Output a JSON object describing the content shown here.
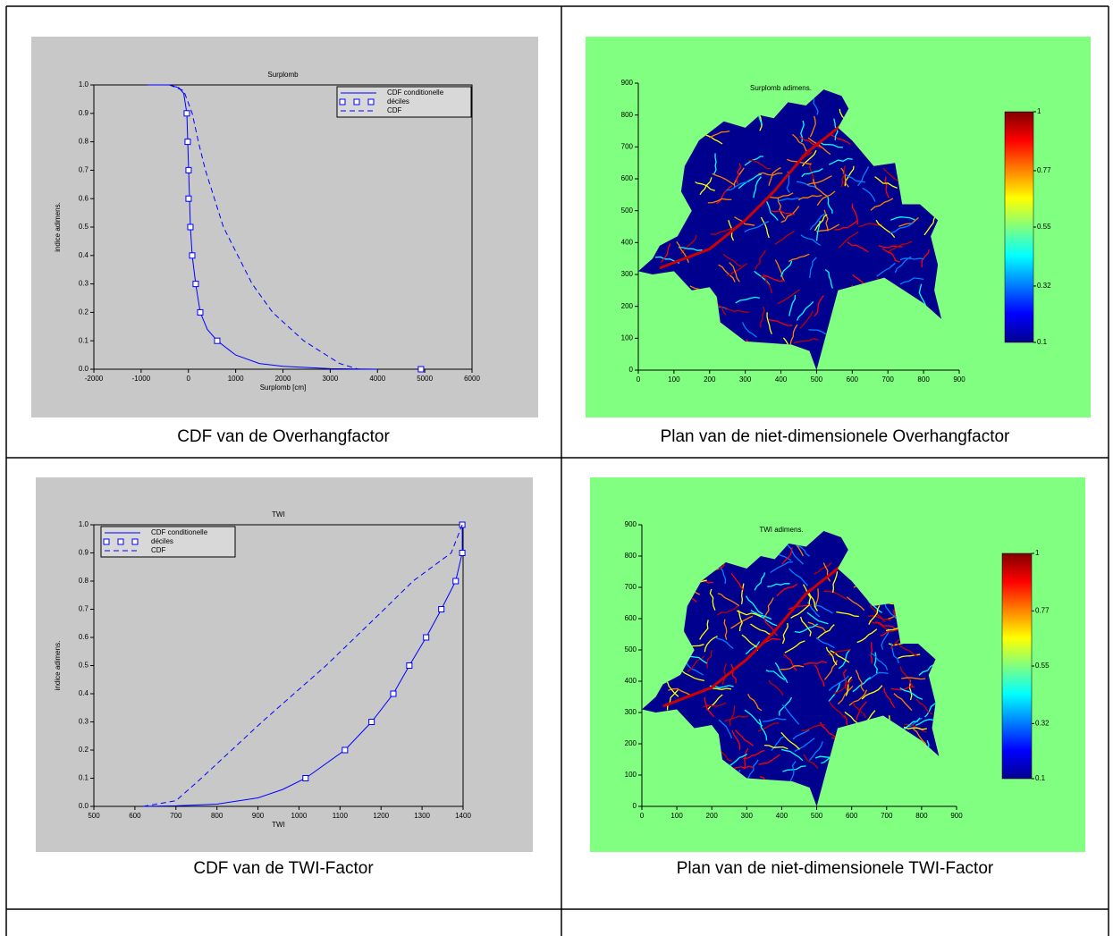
{
  "captions": [
    "CDF van de Overhangfactor",
    "Plan van de  niet-dimensionele Overhangfactor",
    "CDF van de TWI-Factor",
    "Plan van de niet-dimensionele TWI-Factor"
  ],
  "chart_data": [
    {
      "type": "line",
      "title": "Surplomb",
      "xlabel": "Surplomb [cm]",
      "ylabel": "indice adimens.",
      "xlim": [
        -2000,
        6000
      ],
      "ylim": [
        0,
        1
      ],
      "xticks": [
        -2000,
        -1000,
        0,
        1000,
        2000,
        3000,
        4000,
        5000,
        6000
      ],
      "yticks": [
        {
          "value": 0,
          "label": "0.0"
        },
        0.1,
        0.2,
        0.3,
        0.4,
        0.5,
        0.6,
        0.7,
        0.8,
        0.9,
        {
          "value": 1,
          "label": "1.0"
        }
      ],
      "legend": "upper right",
      "series": [
        {
          "name": "CDF conditionelle",
          "color": "#0000ff",
          "style": "solid",
          "x": [
            -870,
            -400,
            -200,
            -100,
            -34,
            -15,
            4,
            42,
            80,
            155,
            250,
            400,
            609,
            1000,
            1500,
            2000,
            3000,
            4000
          ],
          "values": [
            1.0,
            1.0,
            0.99,
            0.97,
            0.9,
            0.8,
            0.7,
            0.5,
            0.4,
            0.3,
            0.2,
            0.14,
            0.1,
            0.05,
            0.02,
            0.01,
            0.002,
            0
          ]
        },
        {
          "name": "déciles",
          "color": "#0000ff",
          "style": "markers",
          "x": [
            -34,
            -15,
            4,
            4,
            42,
            80,
            155,
            250,
            609,
            4920
          ],
          "values": [
            0.9,
            0.8,
            0.7,
            0.6,
            0.5,
            0.4,
            0.3,
            0.2,
            0.1,
            0.0
          ]
        },
        {
          "name": "CDF",
          "color": "#0000ff",
          "style": "dashed",
          "x": [
            -400,
            -100,
            80,
            211,
            360,
            740,
            1350,
            1780,
            2440,
            3200,
            3600
          ],
          "values": [
            1.0,
            0.98,
            0.9,
            0.8,
            0.7,
            0.5,
            0.3,
            0.2,
            0.1,
            0.02,
            0
          ]
        }
      ]
    },
    {
      "type": "map",
      "title": "Surplomb adimens.",
      "xlim": [
        0,
        900
      ],
      "ylim": [
        0,
        900
      ],
      "xticks": [
        0,
        100,
        200,
        300,
        400,
        500,
        600,
        700,
        800,
        900
      ],
      "yticks": [
        0,
        100,
        200,
        300,
        400,
        500,
        600,
        700,
        800,
        900
      ],
      "clim": [
        0.1,
        1
      ],
      "cticks": [
        0.1,
        0.32,
        0.55,
        0.77,
        1
      ]
    },
    {
      "type": "line",
      "title": "TWI",
      "xlabel": "TWI",
      "ylabel": "indice adimens.",
      "xlim": [
        500,
        1400
      ],
      "ylim": [
        0,
        1
      ],
      "xticks": [
        500,
        600,
        700,
        800,
        900,
        1000,
        1100,
        1200,
        1300,
        1400
      ],
      "yticks": [
        {
          "value": 0,
          "label": "0.0"
        },
        0.1,
        0.2,
        0.3,
        0.4,
        0.5,
        0.6,
        0.7,
        0.8,
        0.9,
        {
          "value": 1,
          "label": "1.0"
        }
      ],
      "legend": "upper left",
      "series": [
        {
          "name": "CDF conditionelle",
          "color": "#0000ff",
          "style": "solid",
          "x": [
            620,
            700,
            800,
            900,
            960,
            1016,
            1112,
            1177,
            1230,
            1269,
            1310,
            1347,
            1382,
            1398,
            1398
          ],
          "values": [
            0,
            0.002,
            0.008,
            0.03,
            0.06,
            0.1,
            0.2,
            0.3,
            0.4,
            0.5,
            0.6,
            0.7,
            0.8,
            0.9,
            1.0
          ]
        },
        {
          "name": "déciles",
          "color": "#0000ff",
          "style": "markers",
          "x": [
            1016,
            1112,
            1177,
            1230,
            1269,
            1310,
            1347,
            1382,
            1398,
            1398
          ],
          "values": [
            0.1,
            0.2,
            0.3,
            0.4,
            0.5,
            0.6,
            0.7,
            0.8,
            0.9,
            1.0
          ]
        },
        {
          "name": "CDF",
          "color": "#0000ff",
          "style": "dashed",
          "x": [
            620,
            700,
            762,
            910,
            1066,
            1208,
            1278,
            1371,
            1398
          ],
          "values": [
            0,
            0.02,
            0.1,
            0.3,
            0.5,
            0.7,
            0.8,
            0.9,
            1.0
          ]
        }
      ]
    },
    {
      "type": "map",
      "title": "TWI adimens.",
      "xlim": [
        0,
        900
      ],
      "ylim": [
        0,
        900
      ],
      "xticks": [
        0,
        100,
        200,
        300,
        400,
        500,
        600,
        700,
        800,
        900
      ],
      "yticks": [
        0,
        100,
        200,
        300,
        400,
        500,
        600,
        700,
        800,
        900
      ],
      "clim": [
        0.1,
        1
      ],
      "cticks": [
        0.1,
        0.32,
        0.55,
        0.77,
        1
      ]
    }
  ]
}
